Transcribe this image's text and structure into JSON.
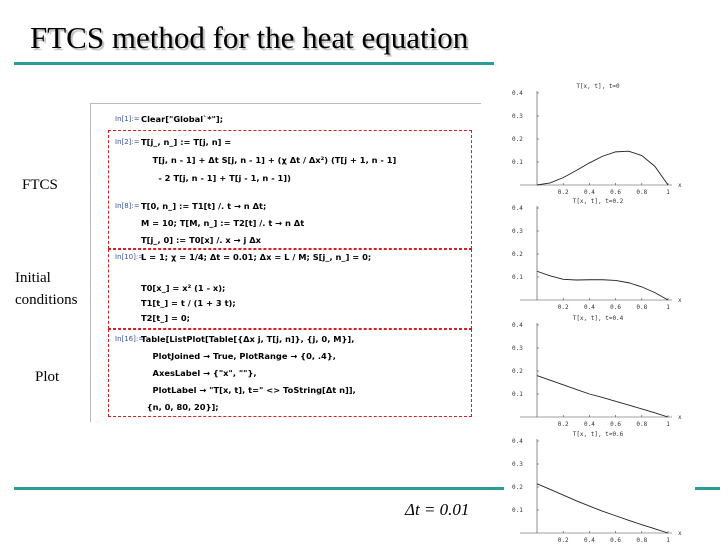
{
  "title": "FTCS method for the heat equation",
  "side_labels": [
    "FTCS",
    "Initial",
    "conditions",
    "Plot"
  ],
  "time_step": "Δt = 0.01",
  "cells": [
    {
      "label": "In[1]:=",
      "lines": [
        "Clear[\"Global`*\"];"
      ]
    },
    {
      "label": "In[2]:=",
      "lines": [
        "T[j_, n_] := T[j, n] =",
        "    T[j, n - 1] + Δt S[j, n - 1] + (χ Δt / Δx²) (T[j + 1, n - 1]",
        "      - 2 T[j, n - 1] + T[j - 1, n - 1])"
      ]
    },
    {
      "label": "In[8]:=",
      "lines": [
        "T[0, n_] := T1[t] /. t → n Δt;",
        "M = 10; T[M, n_] := T2[t] /. t → n Δt",
        "T[j_, 0] := T0[x] /. x → j Δx"
      ]
    },
    {
      "label": "In[10]:=",
      "lines": [
        "L = 1; χ = 1/4; Δt = 0.01; Δx = L / M; S[j_, n_] = 0;",
        "T0[x_] = x² (1 - x);",
        "T1[t_] = t / (1 + 3 t);",
        "T2[t_] = 0;"
      ]
    },
    {
      "label": "In[16]:=",
      "lines": [
        "Table[ListPlot[Table[{Δx j, T[j, n]}, {j, 0, M}],",
        "    PlotJoined → True, PlotRange → {0, .4},",
        "    AxesLabel → {\"x\", \"\"},",
        "    PlotLabel → \"T[x, t], t=\" <> ToString[Δt n]],",
        "  {n, 0, 80, 20}];"
      ]
    }
  ],
  "plots": [
    {
      "title": "T[x, t], t=0",
      "xlabel": "x",
      "xlim": [
        0,
        1
      ],
      "ylim": [
        0,
        0.4
      ],
      "xticks": [
        0.2,
        0.4,
        0.6,
        0.8,
        1
      ],
      "yticks": [
        0.1,
        0.2,
        0.3,
        0.4
      ],
      "x": [
        0,
        0.1,
        0.2,
        0.3,
        0.4,
        0.5,
        0.6,
        0.7,
        0.8,
        0.9,
        1
      ],
      "values": [
        0,
        0.009,
        0.032,
        0.063,
        0.096,
        0.125,
        0.144,
        0.147,
        0.128,
        0.081,
        0
      ]
    },
    {
      "title": "T[x, t], t=0.2",
      "xlabel": "x",
      "xlim": [
        0,
        1
      ],
      "ylim": [
        0,
        0.4
      ],
      "xticks": [
        0.2,
        0.4,
        0.6,
        0.8,
        1
      ],
      "yticks": [
        0.1,
        0.2,
        0.3,
        0.4
      ],
      "x": [
        0,
        0.1,
        0.2,
        0.3,
        0.4,
        0.5,
        0.6,
        0.7,
        0.8,
        0.9,
        1
      ],
      "values": [
        0.125,
        0.105,
        0.09,
        0.087,
        0.088,
        0.088,
        0.085,
        0.075,
        0.057,
        0.032,
        0
      ]
    },
    {
      "title": "T[x, t], t=0.4",
      "xlabel": "x",
      "xlim": [
        0,
        1
      ],
      "ylim": [
        0,
        0.4
      ],
      "xticks": [
        0.2,
        0.4,
        0.6,
        0.8,
        1
      ],
      "yticks": [
        0.1,
        0.2,
        0.3,
        0.4
      ],
      "x": [
        0,
        0.1,
        0.2,
        0.3,
        0.4,
        0.5,
        0.6,
        0.7,
        0.8,
        0.9,
        1
      ],
      "values": [
        0.18,
        0.16,
        0.14,
        0.12,
        0.1,
        0.085,
        0.068,
        0.052,
        0.035,
        0.018,
        0
      ]
    },
    {
      "title": "T[x, t], t=0.6",
      "xlabel": "x",
      "xlim": [
        0,
        1
      ],
      "ylim": [
        0,
        0.4
      ],
      "xticks": [
        0.2,
        0.4,
        0.6,
        0.8,
        1
      ],
      "yticks": [
        0.1,
        0.2,
        0.3,
        0.4
      ],
      "x": [
        0,
        0.1,
        0.2,
        0.3,
        0.4,
        0.5,
        0.6,
        0.7,
        0.8,
        0.9,
        1
      ],
      "values": [
        0.214,
        0.19,
        0.165,
        0.14,
        0.117,
        0.095,
        0.075,
        0.055,
        0.036,
        0.018,
        0
      ]
    }
  ]
}
